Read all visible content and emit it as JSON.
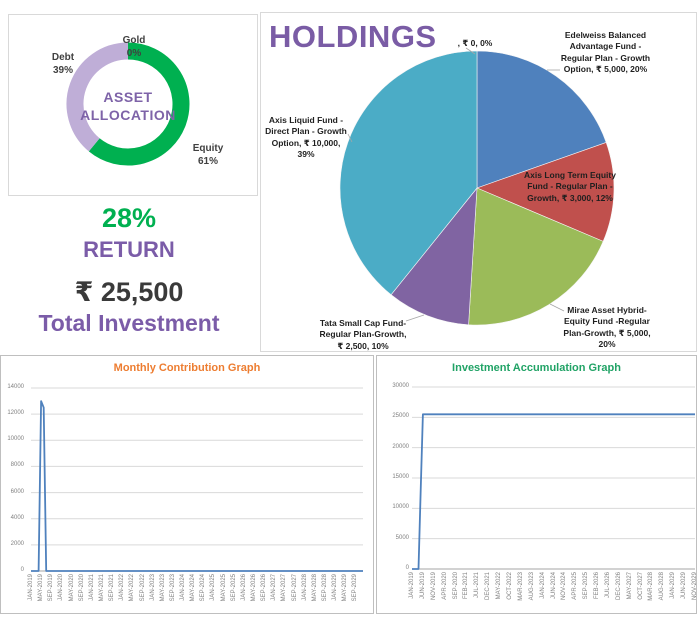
{
  "summary": {
    "return_value": "28%",
    "return_label": "RETURN",
    "total_value": "₹ 25,500",
    "total_label": "Total Investment",
    "return_color": "#00B050",
    "purple_color": "#7B5CA8",
    "total_value_color": "#3A3A3A"
  },
  "chart_data": [
    {
      "type": "pie",
      "subtype": "donut",
      "title": "ASSET ALLOCATION",
      "center_label": [
        "ASSET",
        "ALLOCATION"
      ],
      "direction": "clockwise",
      "start_angle_deg": 0,
      "slices": [
        {
          "name": "Equity",
          "pct_label": "61%",
          "value": 61,
          "color": "#00B050"
        },
        {
          "name": "Gold",
          "pct_label": "0%",
          "value": 0,
          "color": null
        },
        {
          "name": "Debt",
          "pct_label": "39%",
          "value": 39,
          "color": "#BFAED7"
        }
      ]
    },
    {
      "type": "pie",
      "title": "HOLDINGS",
      "title_color": "#7A5CA5",
      "total_value": 25500,
      "direction": "clockwise",
      "start_angle_deg": 0,
      "slices": [
        {
          "name": "",
          "amount": "₹ 0",
          "pct": "0%",
          "value": 0,
          "color": null,
          "label": ", ₹ 0, 0%"
        },
        {
          "name": "Edelweiss Balanced Advantage Fund - Regular Plan - Growth Option",
          "amount": "₹ 5,000",
          "pct": "20%",
          "value": 5000,
          "color": "#4F81BD",
          "label": "Edelweiss Balanced Advantage Fund - Regular Plan - Growth Option, ₹ 5,000, 20%"
        },
        {
          "name": "Axis Long Term Equity Fund - Regular Plan - Growth",
          "amount": "₹ 3,000",
          "pct": "12%",
          "value": 3000,
          "color": "#C0504D",
          "label": "Axis Long Term Equity Fund - Regular Plan - Growth, ₹ 3,000, 12%"
        },
        {
          "name": "Mirae Asset Hybrid- Equity Fund -Regular Plan-Growth",
          "amount": "₹ 5,000",
          "pct": "20%",
          "value": 5000,
          "color": "#9BBB59",
          "label": "Mirae Asset Hybrid- Equity Fund -Regular Plan-Growth, ₹ 5,000, 20%"
        },
        {
          "name": "Tata Small Cap Fund- Regular Plan-Growth",
          "amount": "₹ 2,500",
          "pct": "10%",
          "value": 2500,
          "color": "#8064A2",
          "label": "Tata Small Cap Fund- Regular Plan-Growth, ₹ 2,500, 10%"
        },
        {
          "name": "Axis Liquid Fund - Direct Plan - Growth Option",
          "amount": "₹ 10,000",
          "pct": "39%",
          "value": 10000,
          "color": "#4BACC6",
          "label": "Axis Liquid Fund - Direct Plan - Growth Option, ₹ 10,000, 39%"
        }
      ]
    },
    {
      "type": "line",
      "title": "Monthly Contribution Graph",
      "title_color": "#ED7D31",
      "line_color": "#4F81BD",
      "grid": true,
      "legend": false,
      "ylim": [
        0,
        14000
      ],
      "y_ticks": [
        0,
        2000,
        4000,
        6000,
        8000,
        10000,
        12000,
        14000
      ],
      "months_span": 132,
      "x_tick_month_step": 4,
      "x_tick_labels": [
        "JAN-2019",
        "MAY-2019",
        "SEP-2019",
        "JAN-2020",
        "MAY-2020",
        "SEP-2020",
        "JAN-2021",
        "MAY-2021",
        "SEP-2021",
        "JAN-2022",
        "MAY-2022",
        "SEP-2022",
        "JAN-2023",
        "MAY-2023",
        "SEP-2023",
        "JAN-2024",
        "MAY-2024",
        "SEP-2024",
        "JAN-2025",
        "MAY-2025",
        "SEP-2025",
        "JAN-2026",
        "MAY-2026",
        "SEP-2026",
        "JAN-2027",
        "MAY-2027",
        "SEP-2027",
        "JAN-2028",
        "MAY-2028",
        "SEP-2028",
        "JAN-2029",
        "MAY-2029",
        "SEP-2029"
      ],
      "nonzero_values": [
        {
          "month": "MAY-2019",
          "value": 13000
        },
        {
          "month": "JUN-2019",
          "value": 12500
        }
      ],
      "points": [
        [
          0,
          0
        ],
        [
          3,
          0
        ],
        [
          4,
          13000
        ],
        [
          5,
          12500
        ],
        [
          6,
          0
        ],
        [
          131,
          0
        ]
      ]
    },
    {
      "type": "line",
      "title": "Investment Accumulation Graph",
      "title_color": "#21A366",
      "line_color": "#4F81BD",
      "grid": true,
      "legend": false,
      "ylim": [
        0,
        30000
      ],
      "y_ticks": [
        0,
        5000,
        10000,
        15000,
        20000,
        25000,
        30000
      ],
      "months_span": 131,
      "x_tick_month_step": 5,
      "x_tick_labels": [
        "JAN-2019",
        "JUN-2019",
        "NOV-2019",
        "APR-2020",
        "SEP-2020",
        "FEB-2021",
        "JUL-2021",
        "DEC-2021",
        "MAY-2022",
        "OCT-2022",
        "MAR-2023",
        "AUG-2023",
        "JAN-2024",
        "JUN-2024",
        "NOV-2024",
        "APR-2025",
        "SEP-2025",
        "FEB-2026",
        "JUL-2026",
        "DEC-2026",
        "MAY-2027",
        "OCT-2027",
        "MAR-2028",
        "AUG-2028",
        "JAN-2029",
        "JUN-2029",
        "NOV-2029"
      ],
      "plateau_value": 25500,
      "points": [
        [
          0,
          0
        ],
        [
          3,
          0
        ],
        [
          4,
          13000
        ],
        [
          5,
          25500
        ],
        [
          130,
          25500
        ]
      ]
    }
  ]
}
